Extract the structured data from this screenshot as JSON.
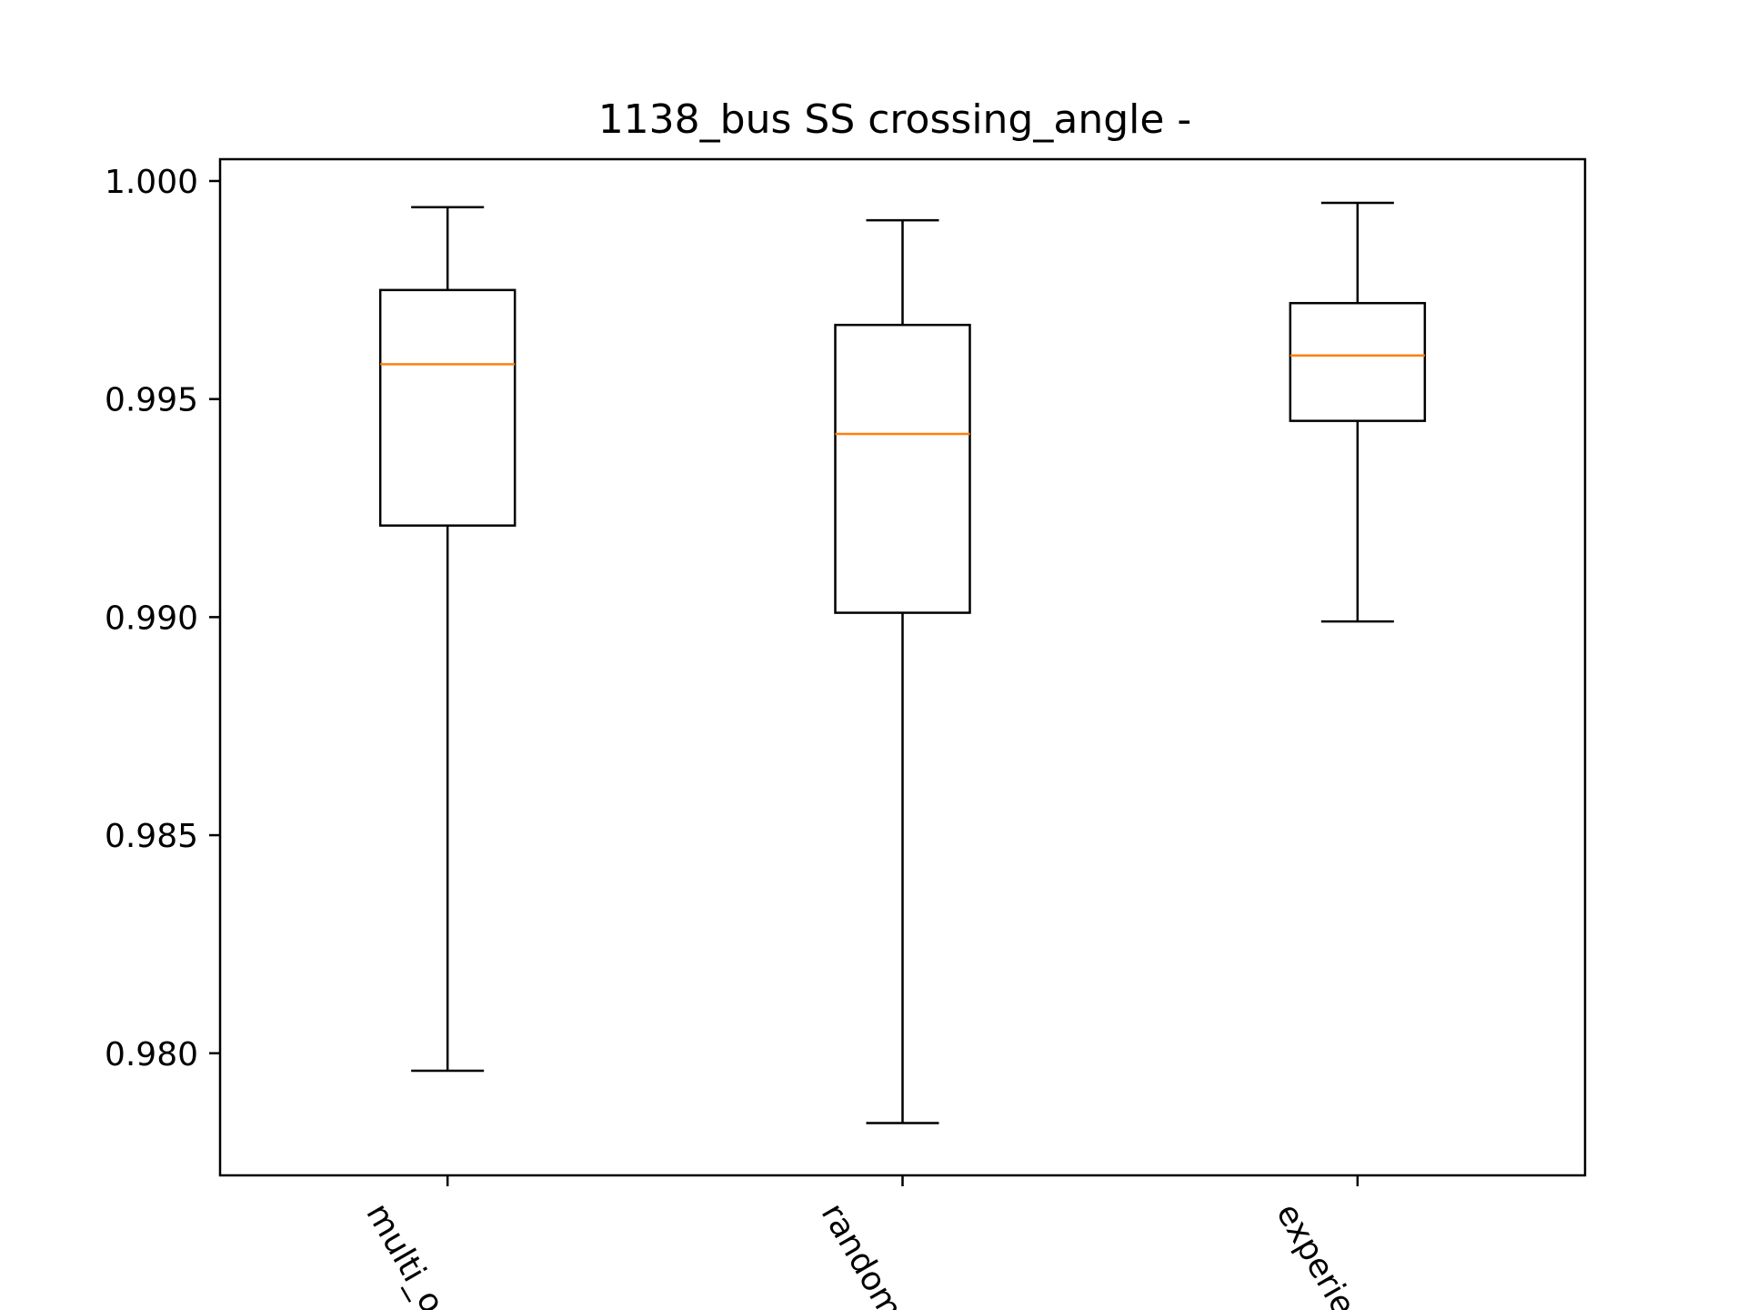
{
  "chart_data": {
    "type": "boxplot",
    "title": "1138_bus SS crossing_angle -",
    "xlabel": "",
    "ylabel": "",
    "ylim": [
      0.9772,
      1.0005
    ],
    "yticks": [
      "0.980",
      "0.985",
      "0.990",
      "0.995",
      "1.000"
    ],
    "ytick_values": [
      0.98,
      0.985,
      0.99,
      0.995,
      1.0
    ],
    "categories": [
      "multi_objective",
      "random",
      "experience"
    ],
    "category_labels_visible": [
      "multi_o",
      "random",
      "experie"
    ],
    "boxes": [
      {
        "name": "multi_objective",
        "whisker_low": 0.9796,
        "q1": 0.9921,
        "median": 0.9958,
        "q3": 0.9975,
        "whisker_high": 0.9994
      },
      {
        "name": "random",
        "whisker_low": 0.9784,
        "q1": 0.9901,
        "median": 0.9942,
        "q3": 0.9967,
        "whisker_high": 0.9991
      },
      {
        "name": "experience",
        "whisker_low": 0.9899,
        "q1": 0.9945,
        "median": 0.996,
        "q3": 0.9972,
        "whisker_high": 0.9995
      }
    ],
    "grid": false,
    "colors": {
      "box": "#000000",
      "median": "#ff7f0e",
      "axes": "#000000"
    }
  }
}
